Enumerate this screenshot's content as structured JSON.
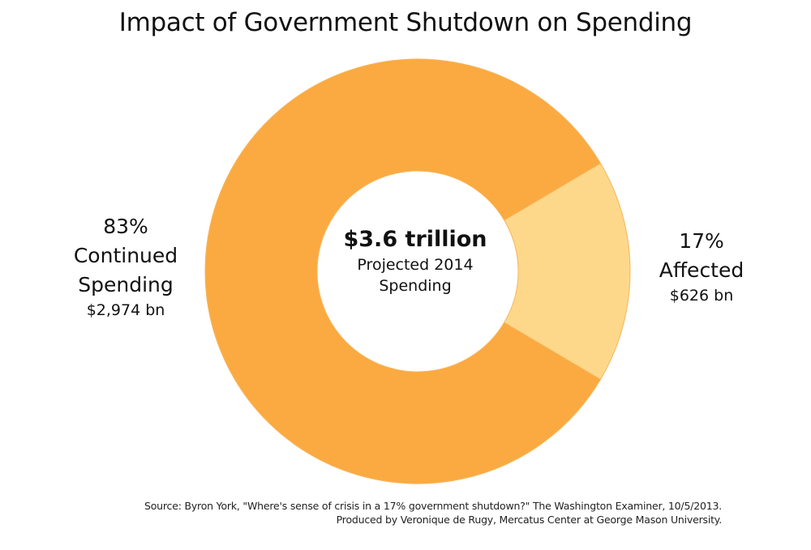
{
  "chart_data": {
    "type": "pie",
    "variant": "donut",
    "title": "Impact of Government Shutdown on Spending",
    "total": {
      "value_label": "$3.6 trillion",
      "caption_line1": "Projected 2014",
      "caption_line2": "Spending"
    },
    "slices": [
      {
        "name": "Continued Spending",
        "label_line1": "Continued",
        "label_line2": "Spending",
        "percent": 83,
        "percent_label": "83%",
        "value_bn": 2974,
        "value_label": "$2,974 bn",
        "color": "#FBAA42",
        "label_position": "left"
      },
      {
        "name": "Affected",
        "label_line1": "Affected",
        "label_line2": "",
        "percent": 17,
        "percent_label": "17%",
        "value_bn": 626,
        "value_label": "$626 bn",
        "color": "#FED88A",
        "label_position": "right"
      }
    ],
    "affected_slice_center_angle_deg": 0,
    "source_line1": "Source: Byron York, \"Where's sense of crisis in a 17% government shutdown?\" The Washington Examiner, 10/5/2013.",
    "source_line2": "Produced by Veronique de Rugy, Mercatus Center at George Mason University."
  }
}
